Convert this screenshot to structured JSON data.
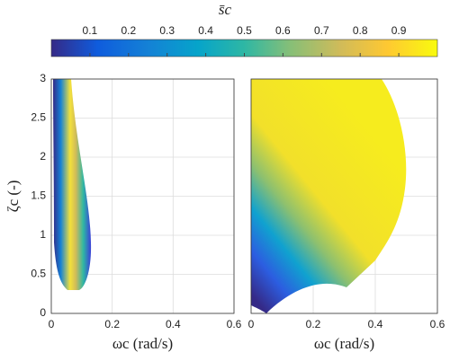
{
  "chart_data": [
    {
      "type": "heatmap",
      "xlabel": "ωc (rad/s)",
      "ylabel": "ζc (-)",
      "xlim": [
        0,
        0.6
      ],
      "ylim": [
        0,
        3
      ],
      "xticks": [
        0,
        0.2,
        0.4,
        0.6
      ],
      "yticks": [
        0,
        0.5,
        1,
        1.5,
        2,
        2.5,
        3
      ],
      "show_yticklabels": true,
      "grid": true
    },
    {
      "type": "heatmap",
      "xlabel": "ωc (rad/s)",
      "xlim": [
        0,
        0.6
      ],
      "ylim": [
        0,
        3
      ],
      "xticks": [
        0,
        0.2,
        0.4,
        0.6
      ],
      "yticks": [
        0,
        0.5,
        1,
        1.5,
        2,
        2.5,
        3
      ],
      "show_yticklabels": false,
      "grid": true
    }
  ],
  "colorbar": {
    "label": "s̄c",
    "clim": [
      0,
      1
    ],
    "ticks": [
      0.1,
      0.2,
      0.3,
      0.4,
      0.5,
      0.6,
      0.7,
      0.8,
      0.9
    ]
  }
}
